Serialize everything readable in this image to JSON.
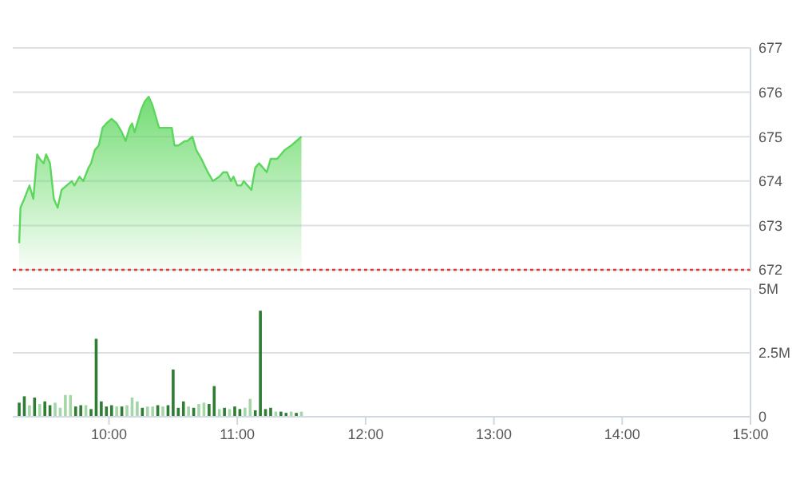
{
  "chart_data": [
    {
      "type": "area",
      "color": "#5cd65c",
      "xlim": [
        9.25,
        15
      ],
      "ylim": [
        672,
        677
      ],
      "yticks": [
        672,
        673,
        674,
        675,
        676,
        677
      ],
      "grid": "y",
      "tick_labels": "y",
      "x": [
        9.3,
        9.31,
        9.34,
        9.38,
        9.41,
        9.44,
        9.46,
        9.49,
        9.51,
        9.54,
        9.57,
        9.6,
        9.63,
        9.67,
        9.71,
        9.73,
        9.77,
        9.8,
        9.84,
        9.86,
        9.89,
        9.92,
        9.95,
        9.98,
        10.02,
        10.06,
        10.1,
        10.13,
        10.16,
        10.18,
        10.2,
        10.22,
        10.25,
        10.28,
        10.31,
        10.34,
        10.37,
        10.39,
        10.42,
        10.46,
        10.49,
        10.51,
        10.54,
        10.59,
        10.61,
        10.65,
        10.68,
        10.72,
        10.77,
        10.81,
        10.86,
        10.89,
        10.92,
        10.95,
        10.97,
        11.0,
        11.03,
        11.05,
        11.08,
        11.11,
        11.14,
        11.17,
        11.2,
        11.23,
        11.26,
        11.29,
        11.31,
        11.34,
        11.37,
        11.42,
        11.46,
        11.5
      ],
      "values": [
        672.6,
        673.4,
        673.6,
        673.9,
        673.6,
        674.6,
        674.5,
        674.4,
        674.6,
        674.4,
        673.6,
        673.4,
        673.8,
        673.9,
        674.0,
        673.9,
        674.1,
        674.0,
        674.3,
        674.4,
        674.7,
        674.8,
        675.2,
        675.3,
        675.4,
        675.3,
        675.1,
        674.9,
        675.2,
        675.3,
        675.1,
        675.3,
        675.6,
        675.8,
        675.9,
        675.7,
        675.4,
        675.2,
        675.2,
        675.2,
        675.2,
        674.8,
        674.8,
        674.9,
        674.9,
        675.0,
        674.7,
        674.5,
        674.2,
        674.0,
        674.1,
        674.2,
        674.2,
        674.0,
        674.1,
        673.9,
        673.9,
        674.0,
        673.9,
        673.8,
        674.3,
        674.4,
        674.3,
        674.2,
        674.5,
        674.5,
        674.5,
        674.6,
        674.7,
        674.8,
        674.9,
        675.0
      ],
      "ref_lines": [
        {
          "axis": "y",
          "value": 672,
          "color": "#e53935",
          "line_style": "dotted"
        }
      ]
    },
    {
      "type": "bar",
      "xlim": [
        9.25,
        15
      ],
      "xticks": [
        {
          "value": 10,
          "label": "10:00"
        },
        {
          "value": 11,
          "label": "11:00"
        },
        {
          "value": 12,
          "label": "12:00"
        },
        {
          "value": 13,
          "label": "13:00"
        },
        {
          "value": 14,
          "label": "14:00"
        },
        {
          "value": 15,
          "label": "15:00"
        }
      ],
      "ylim": [
        0,
        5
      ],
      "yticks": [
        0,
        {
          "value": 2.5,
          "label": "2.5M"
        },
        {
          "value": 5,
          "label": "5M"
        }
      ],
      "grid": "y",
      "x": [
        9.3,
        9.34,
        9.38,
        9.42,
        9.46,
        9.5,
        9.54,
        9.58,
        9.62,
        9.66,
        9.7,
        9.74,
        9.78,
        9.82,
        9.86,
        9.9,
        9.94,
        9.98,
        10.02,
        10.06,
        10.1,
        10.14,
        10.18,
        10.22,
        10.26,
        10.3,
        10.34,
        10.38,
        10.42,
        10.46,
        10.5,
        10.54,
        10.58,
        10.62,
        10.66,
        10.7,
        10.74,
        10.78,
        10.82,
        10.86,
        10.9,
        10.94,
        10.98,
        11.02,
        11.06,
        11.1,
        11.14,
        11.18,
        11.22,
        11.26,
        11.3,
        11.34,
        11.38,
        11.42,
        11.46,
        11.5
      ],
      "values": [
        0.55,
        0.8,
        0.45,
        0.75,
        0.5,
        0.6,
        0.45,
        0.55,
        0.35,
        0.85,
        0.85,
        0.4,
        0.45,
        0.45,
        0.3,
        3.05,
        0.6,
        0.4,
        0.45,
        0.4,
        0.4,
        0.45,
        0.75,
        0.6,
        0.35,
        0.4,
        0.4,
        0.45,
        0.4,
        0.45,
        1.85,
        0.35,
        0.6,
        0.4,
        0.35,
        0.5,
        0.55,
        0.5,
        1.2,
        0.3,
        0.35,
        0.3,
        0.4,
        0.3,
        0.35,
        0.7,
        0.25,
        4.15,
        0.3,
        0.35,
        0.2,
        0.2,
        0.15,
        0.2,
        0.15,
        0.2
      ],
      "colors": [
        "#2e7d32",
        "#2e7d32",
        "#a5d6a7",
        "#2e7d32",
        "#a5d6a7",
        "#2e7d32",
        "#2e7d32",
        "#a5d6a7",
        "#a5d6a7",
        "#a5d6a7",
        "#a5d6a7",
        "#2e7d32",
        "#2e7d32",
        "#a5d6a7",
        "#2e7d32",
        "#2e7d32",
        "#2e7d32",
        "#2e7d32",
        "#2e7d32",
        "#a5d6a7",
        "#2e7d32",
        "#a5d6a7",
        "#a5d6a7",
        "#a5d6a7",
        "#2e7d32",
        "#a5d6a7",
        "#a5d6a7",
        "#2e7d32",
        "#a5d6a7",
        "#2e7d32",
        "#2e7d32",
        "#2e7d32",
        "#2e7d32",
        "#a5d6a7",
        "#2e7d32",
        "#a5d6a7",
        "#a5d6a7",
        "#2e7d32",
        "#2e7d32",
        "#a5d6a7",
        "#2e7d32",
        "#a5d6a7",
        "#2e7d32",
        "#2e7d32",
        "#a5d6a7",
        "#a5d6a7",
        "#2e7d32",
        "#2e7d32",
        "#2e7d32",
        "#2e7d32",
        "#a5d6a7",
        "#2e7d32",
        "#2e7d32",
        "#a5d6a7",
        "#2e7d32",
        "#a5d6a7"
      ]
    }
  ]
}
